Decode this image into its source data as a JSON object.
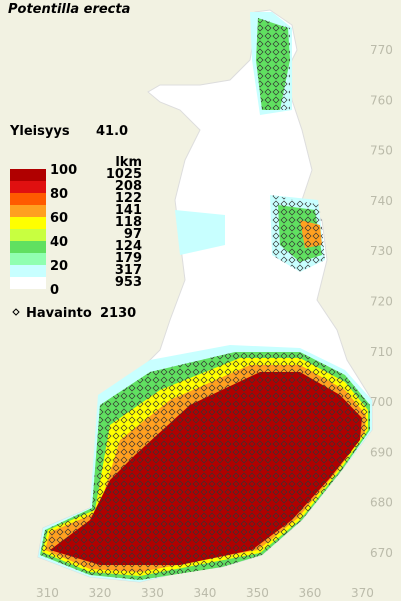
{
  "title": "Potentilla erecta",
  "frequency": {
    "label": "Yleisyys",
    "value": "41.0"
  },
  "legend": {
    "scale_labels": [
      100,
      80,
      60,
      40,
      20,
      0
    ],
    "count_header": "lkm",
    "counts": [
      1025,
      208,
      122,
      141,
      118,
      97,
      124,
      179,
      317,
      953
    ],
    "colors": [
      "#b00000",
      "#e01010",
      "#ff5a00",
      "#ffa020",
      "#ffff00",
      "#c8ff40",
      "#60e060",
      "#90ffb0",
      "#c8ffff",
      "#ffffff"
    ]
  },
  "observations": {
    "label": "Havainto",
    "value": 2130
  },
  "grid": {
    "y_labels": [
      770,
      760,
      750,
      740,
      730,
      720,
      710,
      700,
      690,
      680,
      670
    ],
    "x_labels": [
      310,
      320,
      330,
      340,
      350,
      360,
      370
    ]
  }
}
